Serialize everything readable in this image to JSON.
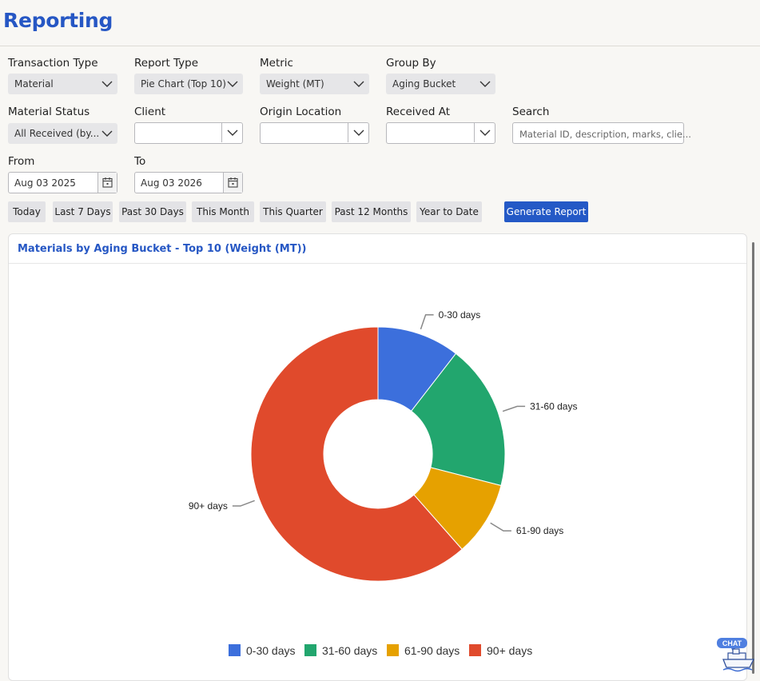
{
  "page": {
    "title": "Reporting"
  },
  "filters": {
    "transaction_type": {
      "label": "Transaction Type",
      "value": "Material"
    },
    "report_type": {
      "label": "Report Type",
      "value": "Pie Chart (Top 10)"
    },
    "metric": {
      "label": "Metric",
      "value": "Weight (MT)"
    },
    "group_by": {
      "label": "Group By",
      "value": "Aging Bucket"
    },
    "material_status": {
      "label": "Material Status",
      "value": "All Received (by..."
    },
    "client": {
      "label": "Client",
      "value": ""
    },
    "origin_location": {
      "label": "Origin Location",
      "value": ""
    },
    "received_at": {
      "label": "Received At",
      "value": ""
    },
    "search": {
      "label": "Search",
      "placeholder": "Material ID, description, marks, clie..."
    },
    "from": {
      "label": "From",
      "value": "Aug 03 2025"
    },
    "to": {
      "label": "To",
      "value": "Aug 03 2026"
    }
  },
  "quick_ranges": [
    "Today",
    "Last 7 Days",
    "Past 30 Days",
    "This Month",
    "This Quarter",
    "Past 12 Months",
    "Year to Date"
  ],
  "generate_label": "Generate Report",
  "chat_label": "CHAT",
  "chart_data": {
    "type": "pie",
    "title": "Materials by Aging Bucket - Top 10 (Weight (MT))",
    "donut": true,
    "categories": [
      "0-30 days",
      "31-60 days",
      "61-90 days",
      "90+ days"
    ],
    "values": [
      10.5,
      18.5,
      9.5,
      61.5
    ],
    "colors": [
      "#3c6fdc",
      "#22a66e",
      "#e6a100",
      "#e04a2c"
    ],
    "legend": "bottom"
  }
}
